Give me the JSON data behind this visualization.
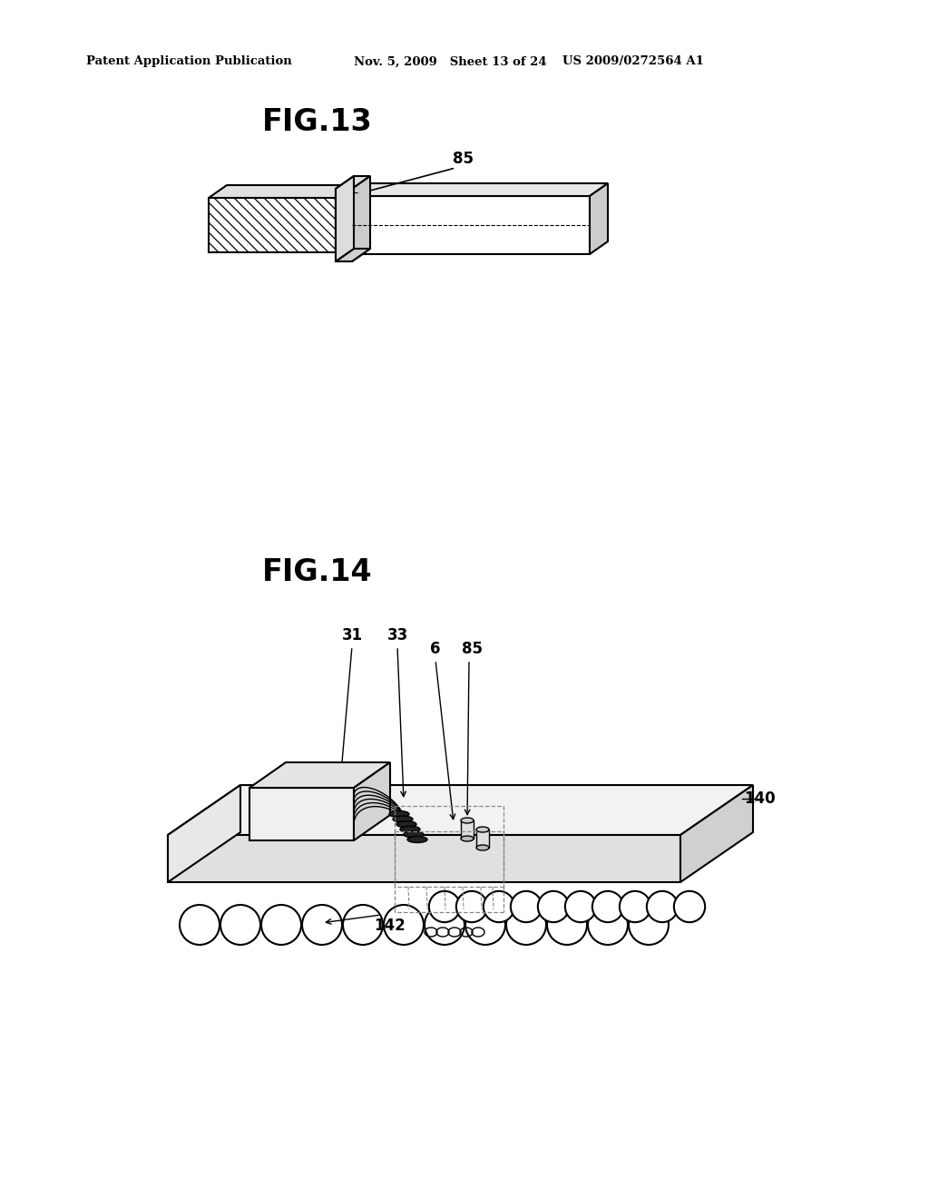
{
  "bg_color": "#ffffff",
  "header_left": "Patent Application Publication",
  "header_mid": "Nov. 5, 2009   Sheet 13 of 24",
  "header_right": "US 2009/0272564 A1",
  "fig13_label": "FIG.13",
  "fig14_label": "FIG.14",
  "label_85_fig13": "85",
  "label_31": "31",
  "label_33": "33",
  "label_6": "6",
  "label_85_fig14": "85",
  "label_140": "140",
  "label_142": "142",
  "black": "#000000",
  "gray_light": "#f0f0f0",
  "gray_mid": "#d8d8d8",
  "gray_dark": "#aaaaaa"
}
